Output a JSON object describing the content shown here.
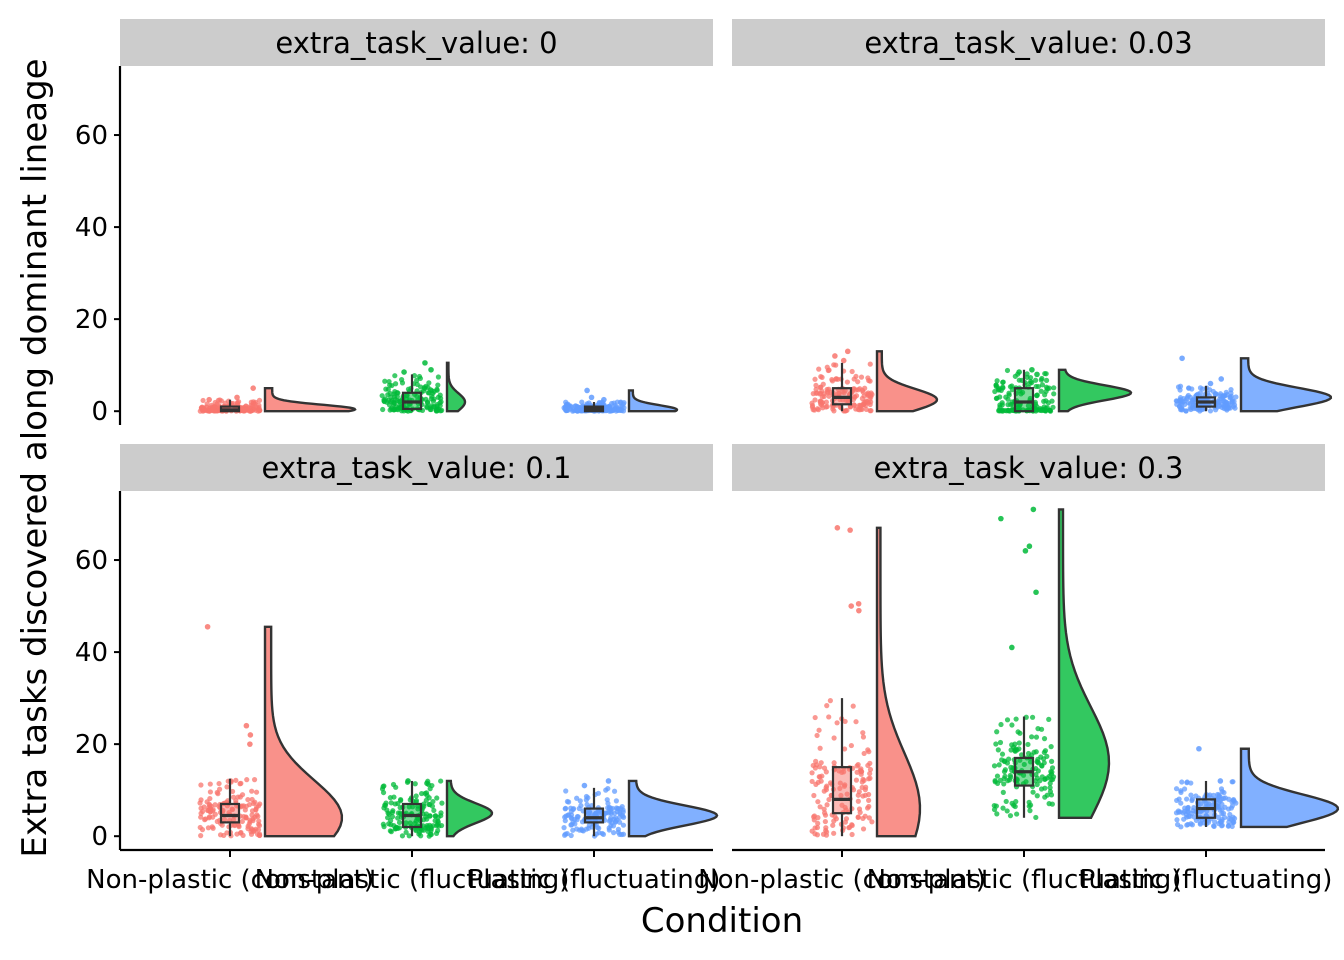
{
  "chart_data": {
    "type": "raincloud",
    "xlabel": "Condition",
    "ylabel": "Extra tasks discovered along dominant lineage",
    "facet_label_prefix": "extra_task_value: ",
    "categories": [
      "Non-plastic (constant)",
      "Non-plastic (fluctuating)",
      "Plastic (fluctuating)"
    ],
    "colors": {
      "Non-plastic (constant)": "#F8766D",
      "Non-plastic (fluctuating)": "#00BA38",
      "Plastic (fluctuating)": "#619CFF",
      "strip_bg": "#CCCCCC",
      "box_fill": "#E6E6E6",
      "line": "#333333"
    },
    "y_ticks": [
      "0",
      "20",
      "40",
      "60"
    ],
    "y_tick_values": [
      0,
      20,
      40,
      60
    ],
    "ylim": [
      -3,
      75
    ],
    "panels": [
      {
        "facet": "0",
        "groups": [
          {
            "condition": "Non-plastic (constant)",
            "min": 0,
            "q1": 0,
            "median": 0.3,
            "q3": 1.0,
            "max": 2.5,
            "top_points": [
              5,
              3,
              2.5
            ],
            "density_peak": 0.4,
            "max_density_width": 0.9
          },
          {
            "condition": "Non-plastic (fluctuating)",
            "min": 0,
            "q1": 0.5,
            "median": 2,
            "q3": 4,
            "max": 8,
            "top_points": [
              10.5,
              9,
              8.5
            ],
            "density_peak": 2,
            "max_density_width": 0.18
          },
          {
            "condition": "Plastic (fluctuating)",
            "min": 0,
            "q1": 0,
            "median": 0.5,
            "q3": 1,
            "max": 2,
            "top_points": [
              4.5,
              3,
              2.5
            ],
            "density_peak": 0.3,
            "max_density_width": 0.48
          }
        ]
      },
      {
        "facet": "0.03",
        "groups": [
          {
            "condition": "Non-plastic (constant)",
            "min": 0,
            "q1": 1.5,
            "median": 3,
            "q3": 5,
            "max": 10.5,
            "top_points": [
              13,
              12,
              11
            ],
            "density_peak": 2.5,
            "max_density_width": 0.6
          },
          {
            "condition": "Non-plastic (fluctuating)",
            "min": 0,
            "q1": 0,
            "median": 2,
            "q3": 5,
            "max": 9,
            "top_points": [
              9,
              8.5,
              8
            ],
            "density_peak": 4,
            "max_density_width": 0.72
          },
          {
            "condition": "Plastic (fluctuating)",
            "min": 0,
            "q1": 1,
            "median": 2,
            "q3": 3,
            "max": 5.5,
            "top_points": [
              11.5,
              7,
              6
            ],
            "density_peak": 3,
            "max_density_width": 0.9
          }
        ]
      },
      {
        "facet": "0.1",
        "groups": [
          {
            "condition": "Non-plastic (constant)",
            "min": 0,
            "q1": 3,
            "median": 4.5,
            "q3": 7,
            "max": 12.5,
            "top_points": [
              45.5,
              24,
              22,
              20
            ],
            "density_peak": 4,
            "max_density_width": 0.77
          },
          {
            "condition": "Non-plastic (fluctuating)",
            "min": 0,
            "q1": 2,
            "median": 4.5,
            "q3": 7,
            "max": 12,
            "top_points": [
              12,
              11.5
            ],
            "density_peak": 5,
            "max_density_width": 0.45
          },
          {
            "condition": "Plastic (fluctuating)",
            "min": 0,
            "q1": 3,
            "median": 4,
            "q3": 6,
            "max": 10.5,
            "top_points": [
              12,
              11
            ],
            "density_peak": 4.5,
            "max_density_width": 0.88
          }
        ]
      },
      {
        "facet": "0.3",
        "groups": [
          {
            "condition": "Non-plastic (constant)",
            "min": 0,
            "q1": 5,
            "median": 8,
            "q3": 15,
            "max": 30,
            "top_points": [
              67,
              66.5,
              50.5,
              50,
              49
            ],
            "density_peak": 6,
            "max_density_width": 0.43
          },
          {
            "condition": "Non-plastic (fluctuating)",
            "min": 4,
            "q1": 11,
            "median": 14,
            "q3": 17,
            "max": 26,
            "top_points": [
              71,
              69,
              63,
              62,
              53,
              41
            ],
            "density_peak": 16,
            "max_density_width": 0.5
          },
          {
            "condition": "Plastic (fluctuating)",
            "min": 2,
            "q1": 4,
            "median": 6,
            "q3": 8,
            "max": 12,
            "top_points": [
              19,
              12
            ],
            "density_peak": 6,
            "max_density_width": 0.97
          }
        ]
      }
    ]
  }
}
